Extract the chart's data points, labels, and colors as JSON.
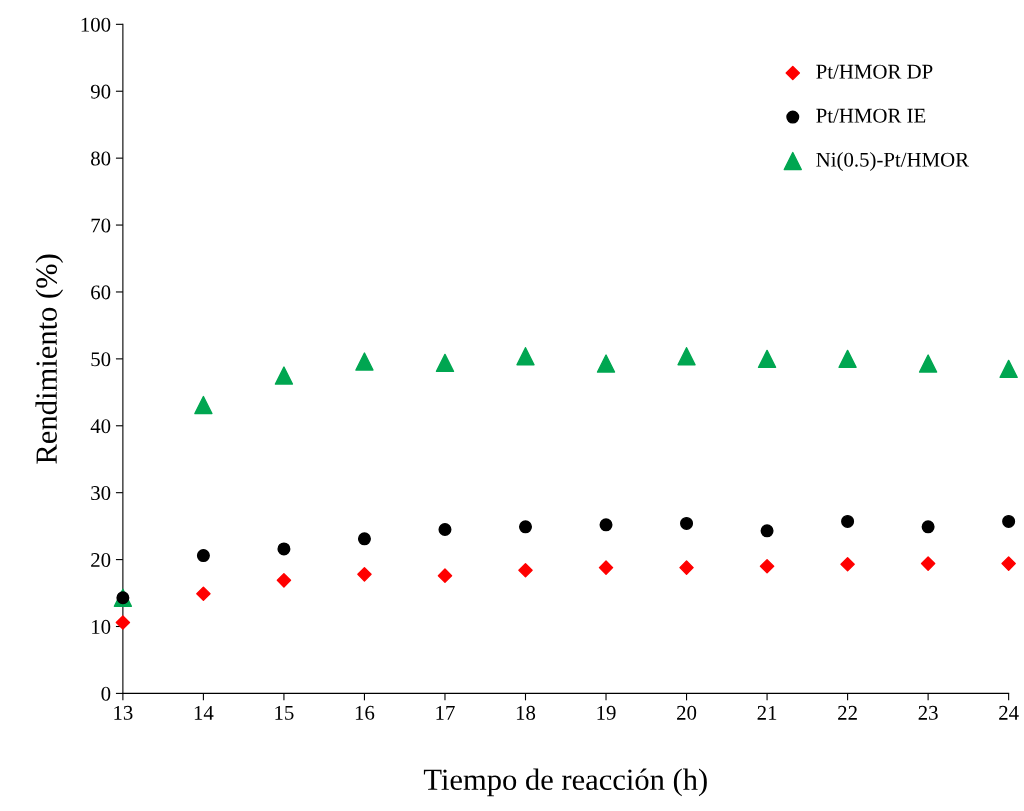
{
  "chart_data": {
    "type": "scatter",
    "xlabel": "Tiempo de reacción (h)",
    "ylabel": "Rendimiento (%)",
    "x": [
      13,
      14,
      15,
      16,
      17,
      18,
      19,
      20,
      21,
      22,
      23,
      24
    ],
    "series": [
      {
        "name": "Pt/HMOR DP",
        "color": "#ff0000",
        "marker": "diamond",
        "values": [
          10.6,
          14.9,
          16.9,
          17.8,
          17.6,
          18.4,
          18.8,
          18.8,
          19.0,
          19.3,
          19.4,
          19.4
        ]
      },
      {
        "name": "Pt/HMOR IE",
        "color": "#000000",
        "marker": "circle",
        "values": [
          14.3,
          20.6,
          21.6,
          23.1,
          24.5,
          24.9,
          25.2,
          25.4,
          24.3,
          25.7,
          24.9,
          25.7
        ]
      },
      {
        "name": "Ni(0.5)-Pt/HMOR",
        "color": "#00a651",
        "marker": "triangle",
        "values": [
          14.3,
          43.1,
          47.5,
          49.6,
          49.4,
          50.4,
          49.3,
          50.4,
          50.0,
          50.0,
          49.3,
          48.5
        ]
      }
    ],
    "xlim": [
      13,
      24
    ],
    "xticks": [
      13,
      14,
      15,
      16,
      17,
      18,
      19,
      20,
      21,
      22,
      23,
      24
    ],
    "ylim": [
      0,
      100
    ],
    "yticks": [
      0,
      10,
      20,
      30,
      40,
      50,
      60,
      70,
      80,
      90,
      100
    ],
    "grid": false,
    "legend": "top right"
  }
}
